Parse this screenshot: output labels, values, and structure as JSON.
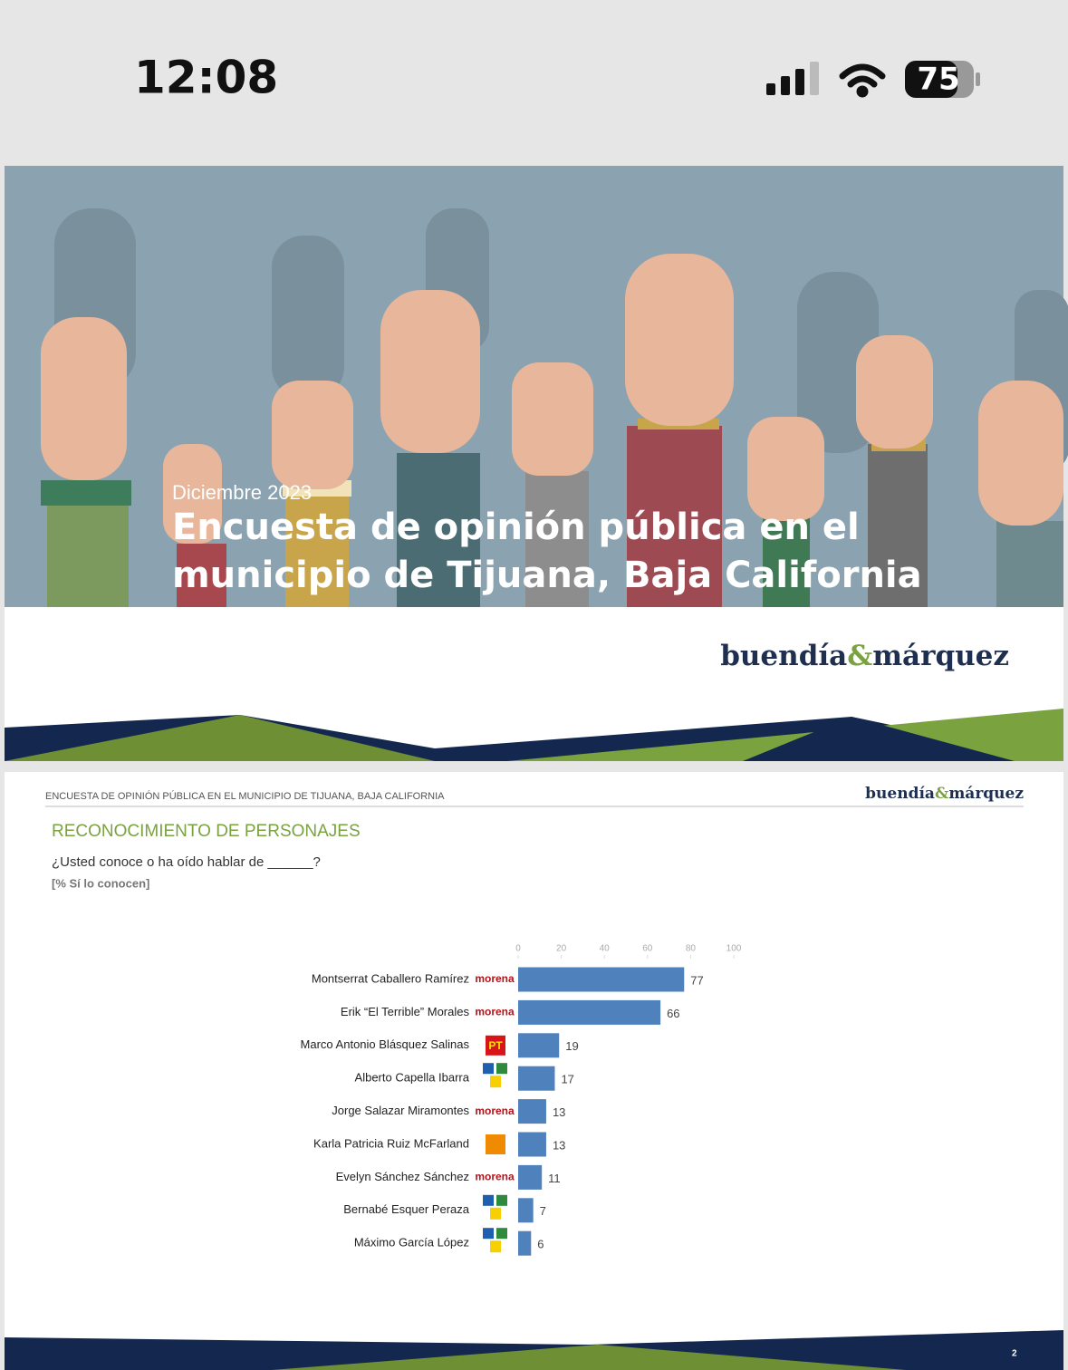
{
  "status_bar": {
    "time": "12:08",
    "battery": "75"
  },
  "cover": {
    "date": "Diciembre 2023",
    "title_lines": [
      "Encuesta de opinión pública en el",
      "municipio de Tijuana, Baja California"
    ],
    "logo": [
      "buendía",
      "&",
      "márquez"
    ]
  },
  "slide": {
    "header": "ENCUESTA DE OPINIÓN PÚBLICA EN EL MUNICIPIO DE TIJUANA, BAJA CALIFORNIA",
    "logo": [
      "buendía",
      "&",
      "márquez"
    ],
    "section": "RECONOCIMIENTO DE PERSONAJES",
    "question": "¿Usted conoce o ha oído hablar de ______?",
    "note": "[% Sí lo conocen]",
    "page": "2"
  },
  "chart_data": {
    "type": "hbar",
    "categories": [
      "Montserrat Caballero Ramírez",
      "Erik “El Terrible” Morales",
      "Marco Antonio Blásquez Salinas",
      "Alberto Capella Ibarra",
      "Jorge Salazar Miramontes",
      "Karla Patricia Ruiz McFarland",
      "Evelyn Sánchez Sánchez",
      "Bernabé Esquer Peraza",
      "Máximo García López"
    ],
    "values": [
      77,
      66,
      19,
      17,
      13,
      13,
      11,
      7,
      6
    ],
    "party_labels": [
      "morena",
      "morena",
      "PT",
      null,
      "morena",
      null,
      "morena",
      null,
      null
    ],
    "party_colors": [
      "#b5121b",
      "#b5121b",
      "#d7141a",
      "#1f5fb0",
      "#b5121b",
      "#f08a00",
      "#b5121b",
      "#1f5fb0",
      "#1f5fb0"
    ],
    "color": "#4f81bd",
    "xlim": [
      0,
      100
    ],
    "xticks": [
      0,
      20,
      40,
      60,
      80,
      100
    ]
  }
}
